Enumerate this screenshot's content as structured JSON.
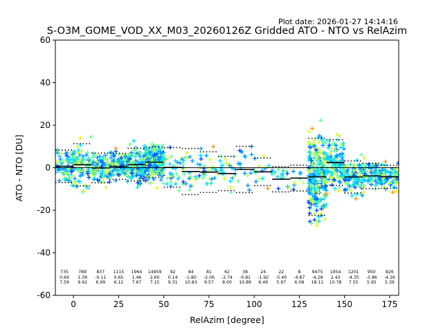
{
  "chart_data": {
    "type": "scatter",
    "plot_date": "Plot date: 2026-01-27 14:14:16",
    "title": "S-O3M_GOME_VOD_XX_M03_20260126Z Gridded ATO - NTO vs RelAzim",
    "xlabel": "RelAzim [degree]",
    "ylabel": "ATO - NTO [DU]",
    "xlim": [
      -10,
      180
    ],
    "ylim": [
      -60,
      60
    ],
    "xticks": [
      0,
      25,
      50,
      75,
      100,
      125,
      150,
      175
    ],
    "yticks": [
      -60,
      -40,
      -20,
      0,
      20,
      40,
      60
    ],
    "grid": false,
    "marker": "plus",
    "point_colors": [
      "#0044ff",
      "#0099ff",
      "#00ddff",
      "#66ff99",
      "#ccff33",
      "#ffee00",
      "#ff9900"
    ],
    "reference_line_y": 0,
    "bins": [
      {
        "x0": -10,
        "x1": 0,
        "count": "735",
        "mean": "0.69",
        "std": "7.59",
        "m": 0.69,
        "s": 7.59
      },
      {
        "x0": 0,
        "x1": 10,
        "count": "789",
        "mean": "1.39",
        "std": "9.92",
        "m": 1.39,
        "s": 9.92
      },
      {
        "x0": 10,
        "x1": 20,
        "count": "837",
        "mean": "-0.11",
        "std": "6.99",
        "m": -0.11,
        "s": 6.99
      },
      {
        "x0": 20,
        "x1": 30,
        "count": "1115",
        "mean": "0.65",
        "std": "6.12",
        "m": 0.65,
        "s": 6.12
      },
      {
        "x0": 30,
        "x1": 40,
        "count": "1964",
        "mean": "1.46",
        "std": "7.67",
        "m": 1.46,
        "s": 7.67
      },
      {
        "x0": 40,
        "x1": 50,
        "count": "14959",
        "mean": "2.60",
        "std": "7.15",
        "m": 2.6,
        "s": 7.15
      },
      {
        "x0": 50,
        "x1": 60,
        "count": "92",
        "mean": "0.14",
        "std": "9.31",
        "m": 0.14,
        "s": 9.31
      },
      {
        "x0": 60,
        "x1": 70,
        "count": "84",
        "mean": "-1.80",
        "std": "10.83",
        "m": -1.8,
        "s": 10.83
      },
      {
        "x0": 70,
        "x1": 80,
        "count": "81",
        "mean": "-2.06",
        "std": "9.57",
        "m": -2.06,
        "s": 9.57
      },
      {
        "x0": 80,
        "x1": 90,
        "count": "62",
        "mean": "-2.74",
        "std": "8.00",
        "m": -2.74,
        "s": 8.0
      },
      {
        "x0": 90,
        "x1": 100,
        "count": "38",
        "mean": "-0.81",
        "std": "10.89",
        "m": -0.81,
        "s": 10.89
      },
      {
        "x0": 100,
        "x1": 110,
        "count": "24",
        "mean": "-1.92",
        "std": "6.49",
        "m": -1.92,
        "s": 6.49
      },
      {
        "x0": 110,
        "x1": 120,
        "count": "22",
        "mean": "-5.40",
        "std": "5.97",
        "m": -5.4,
        "s": 5.97
      },
      {
        "x0": 120,
        "x1": 130,
        "count": "8",
        "mean": "-4.87",
        "std": "6.08",
        "m": -4.87,
        "s": 6.08
      },
      {
        "x0": 130,
        "x1": 140,
        "count": "9475",
        "mean": "-4.28",
        "std": "18.11",
        "m": -4.28,
        "s": 18.11
      },
      {
        "x0": 140,
        "x1": 150,
        "count": "1954",
        "mean": "2.43",
        "std": "10.78",
        "m": 2.43,
        "s": 10.78
      },
      {
        "x0": 150,
        "x1": 160,
        "count": "1201",
        "mean": "-4.35",
        "std": "7.55",
        "m": -4.35,
        "s": 7.55
      },
      {
        "x0": 160,
        "x1": 170,
        "count": "950",
        "mean": "-3.86",
        "std": "5.95",
        "m": -3.86,
        "s": 5.95
      },
      {
        "x0": 170,
        "x1": 180,
        "count": "826",
        "mean": "-4.26",
        "std": "5.39",
        "m": -4.26,
        "s": 5.39
      }
    ]
  }
}
